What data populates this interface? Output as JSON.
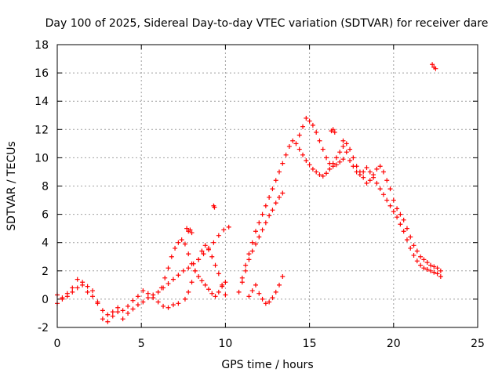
{
  "chart_data": {
    "type": "scatter",
    "title": "Day 100 of 2025, Sidereal Day-to-day VTEC variation (SDTVAR) for receiver dare",
    "xlabel": "GPS time / hours",
    "ylabel": "SDTVAR / TECUs",
    "xlim": [
      0,
      25
    ],
    "ylim": [
      -2,
      18
    ],
    "xticks": [
      0,
      5,
      10,
      15,
      20,
      25
    ],
    "yticks": [
      -2,
      0,
      2,
      4,
      6,
      8,
      10,
      12,
      14,
      16,
      18
    ],
    "grid": true,
    "marker": "plus",
    "color": "#ff0000",
    "series": [
      {
        "name": "track-1",
        "x": [
          0.0,
          0.3,
          0.6,
          0.9,
          1.2,
          1.5,
          1.8,
          2.1,
          2.4,
          2.7,
          3.0,
          3.3,
          3.6,
          3.9,
          4.2,
          4.5,
          4.8,
          5.1,
          5.4,
          5.7,
          6.0,
          6.3,
          6.6,
          6.9,
          7.2,
          7.5,
          7.8,
          8.1,
          8.4,
          8.7,
          9.0,
          9.3,
          9.6,
          9.9,
          10.2
        ],
        "y": [
          -0.3,
          0.0,
          0.2,
          0.5,
          0.8,
          1.2,
          0.9,
          0.6,
          -0.2,
          -0.8,
          -1.1,
          -0.9,
          -0.6,
          -0.8,
          -1.0,
          -0.7,
          -0.4,
          -0.2,
          0.1,
          0.3,
          0.5,
          0.8,
          1.1,
          1.4,
          1.7,
          2.0,
          2.2,
          2.5,
          2.8,
          3.2,
          3.6,
          4.0,
          4.5,
          4.9,
          5.1
        ]
      },
      {
        "name": "track-2",
        "x": [
          0.0,
          0.3,
          0.6,
          0.9,
          1.2,
          1.5,
          1.8,
          2.1,
          2.4,
          2.7,
          3.0,
          3.3,
          3.6,
          3.9,
          4.2,
          4.5,
          4.8,
          5.1,
          5.4,
          5.7,
          6.0,
          6.3,
          6.6,
          6.9,
          7.2
        ],
        "y": [
          0.3,
          0.1,
          0.4,
          0.8,
          1.4,
          1.0,
          0.5,
          0.2,
          -0.3,
          -1.4,
          -1.6,
          -1.2,
          -0.9,
          -1.4,
          -0.5,
          -0.1,
          0.2,
          0.6,
          0.4,
          0.1,
          -0.2,
          -0.5,
          -0.6,
          -0.4,
          -0.3
        ]
      },
      {
        "name": "track-3",
        "x": [
          6.2,
          6.4,
          6.6,
          6.8,
          7.0,
          7.2,
          7.4,
          7.6,
          7.8,
          8.0,
          8.2,
          8.4,
          8.6,
          8.8,
          9.0,
          9.2,
          9.4,
          9.6,
          9.8,
          10.0
        ],
        "y": [
          0.8,
          1.5,
          2.2,
          3.0,
          3.6,
          4.0,
          4.2,
          3.9,
          3.2,
          2.5,
          2.0,
          1.6,
          1.3,
          1.0,
          0.7,
          0.4,
          0.2,
          0.5,
          0.9,
          1.2
        ]
      },
      {
        "name": "track-4",
        "x": [
          7.6,
          7.8,
          8.0,
          8.2,
          8.4,
          8.6,
          8.8,
          9.0,
          9.2,
          9.4,
          9.6,
          9.8,
          10.0
        ],
        "y": [
          0.0,
          0.5,
          1.2,
          2.0,
          2.8,
          3.4,
          3.8,
          3.5,
          3.0,
          2.4,
          1.8,
          1.0,
          0.3
        ]
      },
      {
        "name": "track-5",
        "x": [
          7.7,
          7.8,
          7.9,
          8.0
        ],
        "y": [
          5.0,
          4.8,
          4.9,
          4.7
        ]
      },
      {
        "name": "track-6",
        "x": [
          9.3,
          9.35
        ],
        "y": [
          6.6,
          6.5
        ]
      },
      {
        "name": "track-7",
        "x": [
          10.8,
          11.0,
          11.2,
          11.4,
          11.6,
          11.8,
          12.0,
          12.2,
          12.4,
          12.6,
          12.8,
          13.0,
          13.2,
          13.4
        ],
        "y": [
          0.5,
          1.2,
          2.0,
          2.8,
          3.4,
          3.9,
          4.4,
          4.9,
          5.4,
          5.9,
          6.3,
          6.8,
          7.2,
          7.5
        ]
      },
      {
        "name": "track-8",
        "x": [
          11.0,
          11.2,
          11.4,
          11.6,
          11.8,
          12.0,
          12.2,
          12.4,
          12.6,
          12.8,
          13.0,
          13.2,
          13.4,
          13.6,
          13.8,
          14.0,
          14.2,
          14.4,
          14.6,
          14.8,
          15.0,
          15.2,
          15.4,
          15.6,
          15.8,
          16.0,
          16.2,
          16.4,
          16.6,
          16.8,
          17.0,
          17.2,
          17.4,
          17.6,
          17.8,
          18.0,
          18.2,
          18.4,
          18.6,
          18.8,
          19.0,
          19.2,
          19.4,
          19.6,
          19.8,
          20.0,
          20.2,
          20.4,
          20.6,
          20.8,
          21.0,
          21.2,
          21.4,
          21.6,
          21.8,
          22.0,
          22.2,
          22.4,
          22.6,
          22.8
        ],
        "y": [
          1.5,
          2.4,
          3.2,
          4.0,
          4.8,
          5.4,
          6.0,
          6.6,
          7.2,
          7.8,
          8.4,
          9.0,
          9.6,
          10.2,
          10.8,
          11.2,
          11.0,
          10.6,
          10.2,
          9.8,
          9.5,
          9.2,
          9.0,
          8.8,
          8.7,
          8.9,
          9.2,
          9.6,
          10.0,
          10.4,
          10.8,
          10.4,
          9.8,
          9.4,
          9.0,
          8.8,
          9.0,
          9.3,
          9.0,
          8.6,
          8.2,
          7.8,
          7.4,
          7.0,
          6.6,
          6.2,
          5.8,
          5.3,
          4.8,
          4.2,
          3.6,
          3.1,
          2.7,
          2.4,
          2.2,
          2.1,
          2.0,
          1.9,
          1.8,
          1.6
        ]
      },
      {
        "name": "track-9",
        "x": [
          14.4,
          14.6,
          14.8,
          15.0,
          15.2,
          15.4,
          15.6,
          15.8,
          16.0,
          16.2,
          16.4,
          16.6,
          16.8,
          17.0
        ],
        "y": [
          11.6,
          12.2,
          12.8,
          12.6,
          12.3,
          11.8,
          11.2,
          10.6,
          10.0,
          9.6,
          9.4,
          9.5,
          9.7,
          9.9
        ]
      },
      {
        "name": "track-10",
        "x": [
          16.3,
          16.4,
          16.5
        ],
        "y": [
          11.9,
          12.0,
          11.8
        ]
      },
      {
        "name": "track-11",
        "x": [
          17.0,
          17.2,
          17.4,
          17.6,
          17.8,
          18.0,
          18.2,
          18.4,
          18.6,
          18.8,
          19.0,
          19.2,
          19.4,
          19.6,
          19.8,
          20.0,
          20.2,
          20.4,
          20.6,
          20.8,
          21.0,
          21.2,
          21.4,
          21.6,
          21.8,
          22.0,
          22.2,
          22.4,
          22.6,
          22.8
        ],
        "y": [
          11.2,
          11.0,
          10.6,
          10.0,
          9.4,
          9.0,
          8.6,
          8.2,
          8.4,
          8.8,
          9.2,
          9.4,
          9.0,
          8.4,
          7.8,
          7.0,
          6.4,
          6.0,
          5.6,
          5.0,
          4.4,
          3.8,
          3.4,
          3.0,
          2.8,
          2.6,
          2.4,
          2.3,
          2.2,
          2.0
        ]
      },
      {
        "name": "track-12",
        "x": [
          22.3,
          22.4,
          22.5
        ],
        "y": [
          16.6,
          16.4,
          16.3
        ]
      },
      {
        "name": "track-13",
        "x": [
          11.4,
          11.6,
          11.8,
          12.0,
          12.2,
          12.4,
          12.6,
          12.8,
          13.0,
          13.2,
          13.4
        ],
        "y": [
          0.2,
          0.6,
          1.0,
          0.4,
          0.0,
          -0.3,
          -0.2,
          0.1,
          0.5,
          1.0,
          1.6
        ]
      }
    ]
  }
}
